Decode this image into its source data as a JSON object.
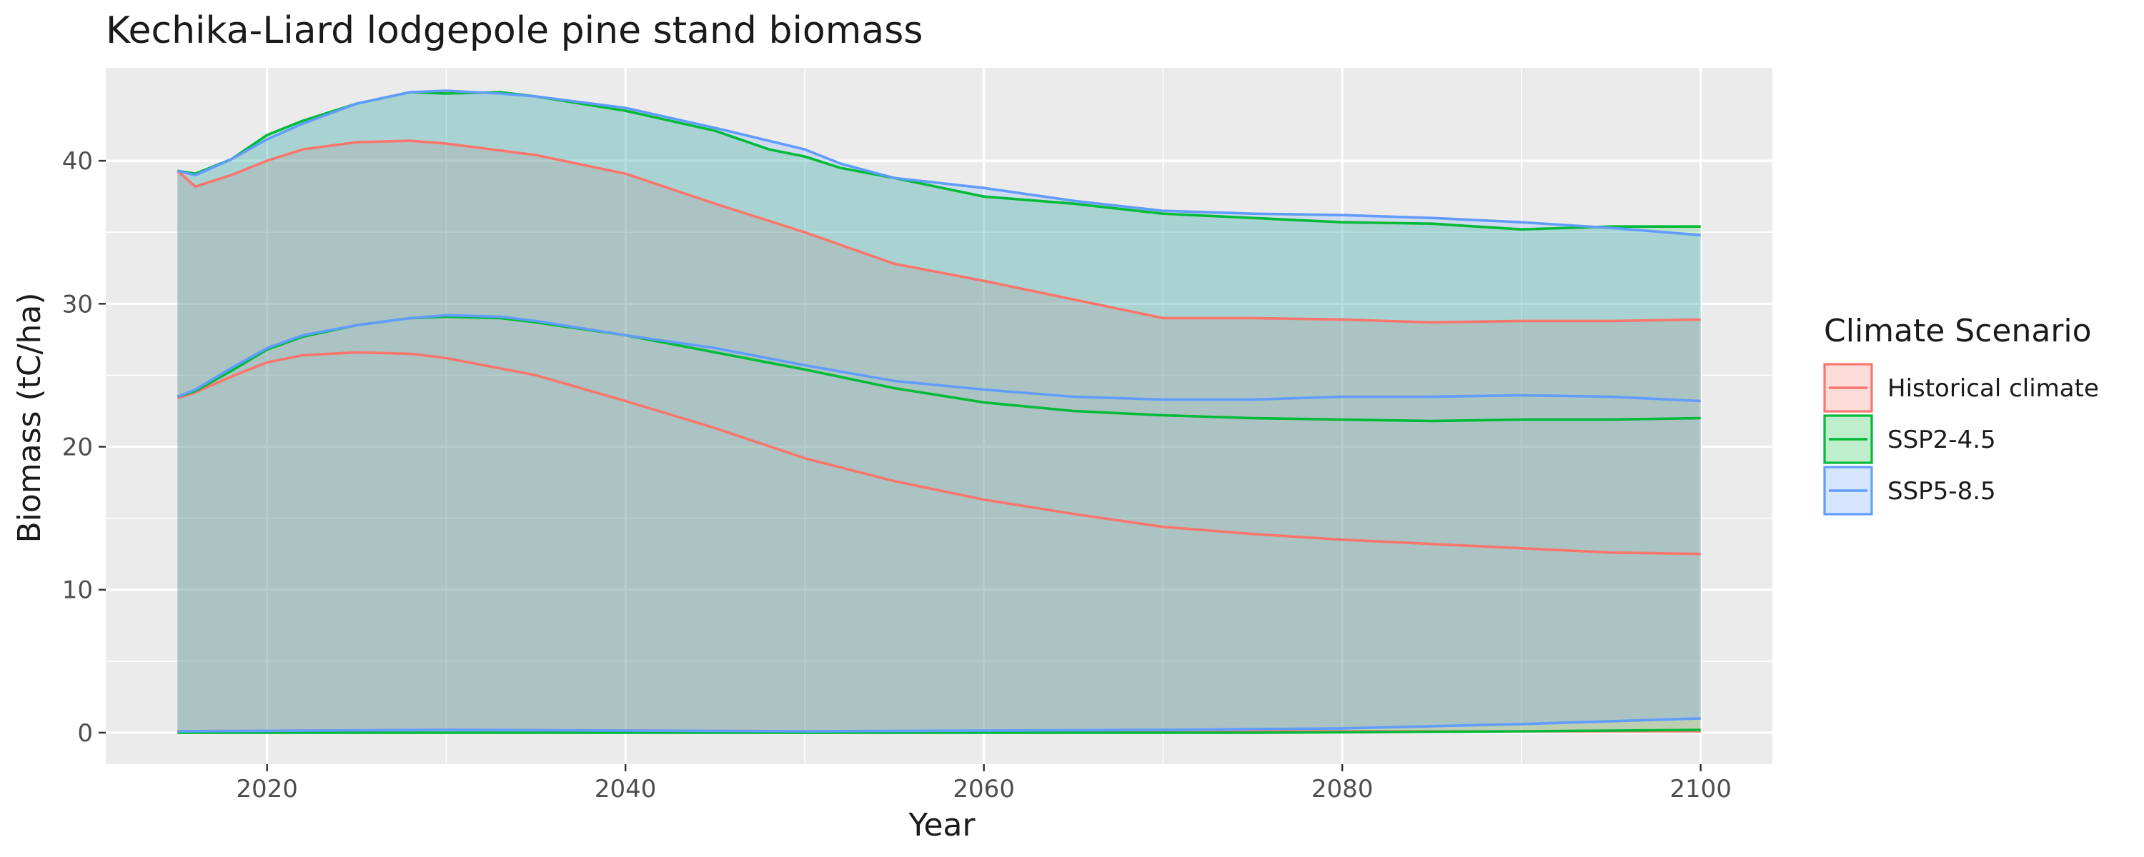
{
  "chart_data": {
    "type": "area",
    "title": "Kechika-Liard lodgepole pine stand biomass",
    "xlabel": "Year",
    "ylabel": "Biomass (tC/ha)",
    "xlim": [
      2011,
      2104
    ],
    "ylim": [
      -2.2,
      46.5
    ],
    "x_ticks": [
      2020,
      2040,
      2060,
      2080,
      2100
    ],
    "y_ticks": [
      0,
      10,
      20,
      30,
      40
    ],
    "grid": true,
    "legend": {
      "title": "Climate Scenario",
      "position": "right"
    },
    "series": [
      {
        "name": "Historical climate",
        "color": "#F8766D",
        "mean": [
          [
            2015,
            23.4
          ],
          [
            2016,
            23.8
          ],
          [
            2018,
            24.9
          ],
          [
            2020,
            25.9
          ],
          [
            2022,
            26.4
          ],
          [
            2025,
            26.6
          ],
          [
            2028,
            26.5
          ],
          [
            2030,
            26.2
          ],
          [
            2035,
            25.0
          ],
          [
            2040,
            23.2
          ],
          [
            2045,
            21.3
          ],
          [
            2050,
            19.2
          ],
          [
            2055,
            17.6
          ],
          [
            2060,
            16.3
          ],
          [
            2065,
            15.3
          ],
          [
            2070,
            14.4
          ],
          [
            2075,
            13.9
          ],
          [
            2080,
            13.5
          ],
          [
            2085,
            13.2
          ],
          [
            2090,
            12.9
          ],
          [
            2095,
            12.6
          ],
          [
            2100,
            12.5
          ]
        ],
        "upper": [
          [
            2015,
            39.3
          ],
          [
            2016,
            38.2
          ],
          [
            2018,
            39.0
          ],
          [
            2020,
            40.0
          ],
          [
            2022,
            40.8
          ],
          [
            2025,
            41.3
          ],
          [
            2028,
            41.4
          ],
          [
            2030,
            41.2
          ],
          [
            2035,
            40.4
          ],
          [
            2040,
            39.1
          ],
          [
            2045,
            37.0
          ],
          [
            2050,
            35.0
          ],
          [
            2055,
            32.8
          ],
          [
            2060,
            31.6
          ],
          [
            2065,
            30.3
          ],
          [
            2070,
            29.0
          ],
          [
            2075,
            29.0
          ],
          [
            2080,
            28.9
          ],
          [
            2085,
            28.7
          ],
          [
            2090,
            28.8
          ],
          [
            2095,
            28.8
          ],
          [
            2100,
            28.9
          ]
        ],
        "lower": [
          [
            2015,
            0.1
          ],
          [
            2030,
            0.2
          ],
          [
            2050,
            0.1
          ],
          [
            2075,
            0.1
          ],
          [
            2100,
            0.1
          ]
        ]
      },
      {
        "name": "SSP2-4.5",
        "color": "#00BA38",
        "mean": [
          [
            2015,
            23.5
          ],
          [
            2016,
            23.9
          ],
          [
            2018,
            25.3
          ],
          [
            2020,
            26.8
          ],
          [
            2022,
            27.7
          ],
          [
            2025,
            28.5
          ],
          [
            2028,
            29.0
          ],
          [
            2030,
            29.1
          ],
          [
            2033,
            29.0
          ],
          [
            2035,
            28.7
          ],
          [
            2040,
            27.8
          ],
          [
            2045,
            26.6
          ],
          [
            2050,
            25.4
          ],
          [
            2055,
            24.1
          ],
          [
            2060,
            23.1
          ],
          [
            2065,
            22.5
          ],
          [
            2070,
            22.2
          ],
          [
            2075,
            22.0
          ],
          [
            2080,
            21.9
          ],
          [
            2085,
            21.8
          ],
          [
            2090,
            21.9
          ],
          [
            2095,
            21.9
          ],
          [
            2100,
            22.0
          ]
        ],
        "upper": [
          [
            2015,
            39.3
          ],
          [
            2016,
            39.1
          ],
          [
            2018,
            40.1
          ],
          [
            2020,
            41.8
          ],
          [
            2022,
            42.8
          ],
          [
            2025,
            44.0
          ],
          [
            2028,
            44.8
          ],
          [
            2030,
            44.7
          ],
          [
            2033,
            44.8
          ],
          [
            2035,
            44.5
          ],
          [
            2040,
            43.5
          ],
          [
            2045,
            42.1
          ],
          [
            2048,
            40.8
          ],
          [
            2050,
            40.3
          ],
          [
            2052,
            39.5
          ],
          [
            2055,
            38.8
          ],
          [
            2060,
            37.5
          ],
          [
            2065,
            37.0
          ],
          [
            2070,
            36.3
          ],
          [
            2075,
            36.0
          ],
          [
            2080,
            35.7
          ],
          [
            2085,
            35.6
          ],
          [
            2090,
            35.2
          ],
          [
            2095,
            35.4
          ],
          [
            2100,
            35.4
          ]
        ],
        "lower": [
          [
            2015,
            0.0
          ],
          [
            2050,
            0.0
          ],
          [
            2075,
            0.0
          ],
          [
            2090,
            0.1
          ],
          [
            2100,
            0.2
          ]
        ]
      },
      {
        "name": "SSP5-8.5",
        "color": "#619CFF",
        "mean": [
          [
            2015,
            23.5
          ],
          [
            2016,
            24.0
          ],
          [
            2018,
            25.5
          ],
          [
            2020,
            26.9
          ],
          [
            2022,
            27.8
          ],
          [
            2025,
            28.5
          ],
          [
            2028,
            29.0
          ],
          [
            2030,
            29.2
          ],
          [
            2033,
            29.1
          ],
          [
            2035,
            28.8
          ],
          [
            2040,
            27.8
          ],
          [
            2045,
            26.9
          ],
          [
            2050,
            25.7
          ],
          [
            2055,
            24.6
          ],
          [
            2060,
            24.0
          ],
          [
            2065,
            23.5
          ],
          [
            2070,
            23.3
          ],
          [
            2075,
            23.3
          ],
          [
            2080,
            23.5
          ],
          [
            2085,
            23.5
          ],
          [
            2090,
            23.6
          ],
          [
            2095,
            23.5
          ],
          [
            2100,
            23.2
          ]
        ],
        "upper": [
          [
            2015,
            39.3
          ],
          [
            2016,
            39.0
          ],
          [
            2018,
            40.1
          ],
          [
            2020,
            41.5
          ],
          [
            2022,
            42.6
          ],
          [
            2025,
            44.0
          ],
          [
            2028,
            44.8
          ],
          [
            2030,
            44.9
          ],
          [
            2033,
            44.7
          ],
          [
            2035,
            44.5
          ],
          [
            2040,
            43.7
          ],
          [
            2045,
            42.3
          ],
          [
            2048,
            41.4
          ],
          [
            2050,
            40.8
          ],
          [
            2052,
            39.8
          ],
          [
            2055,
            38.8
          ],
          [
            2060,
            38.1
          ],
          [
            2065,
            37.2
          ],
          [
            2070,
            36.5
          ],
          [
            2075,
            36.3
          ],
          [
            2080,
            36.2
          ],
          [
            2085,
            36.0
          ],
          [
            2090,
            35.7
          ],
          [
            2095,
            35.3
          ],
          [
            2100,
            34.8
          ]
        ],
        "lower": [
          [
            2015,
            0.1
          ],
          [
            2030,
            0.2
          ],
          [
            2050,
            0.1
          ],
          [
            2070,
            0.2
          ],
          [
            2080,
            0.3
          ],
          [
            2090,
            0.6
          ],
          [
            2095,
            0.8
          ],
          [
            2100,
            1.0
          ]
        ]
      }
    ]
  }
}
